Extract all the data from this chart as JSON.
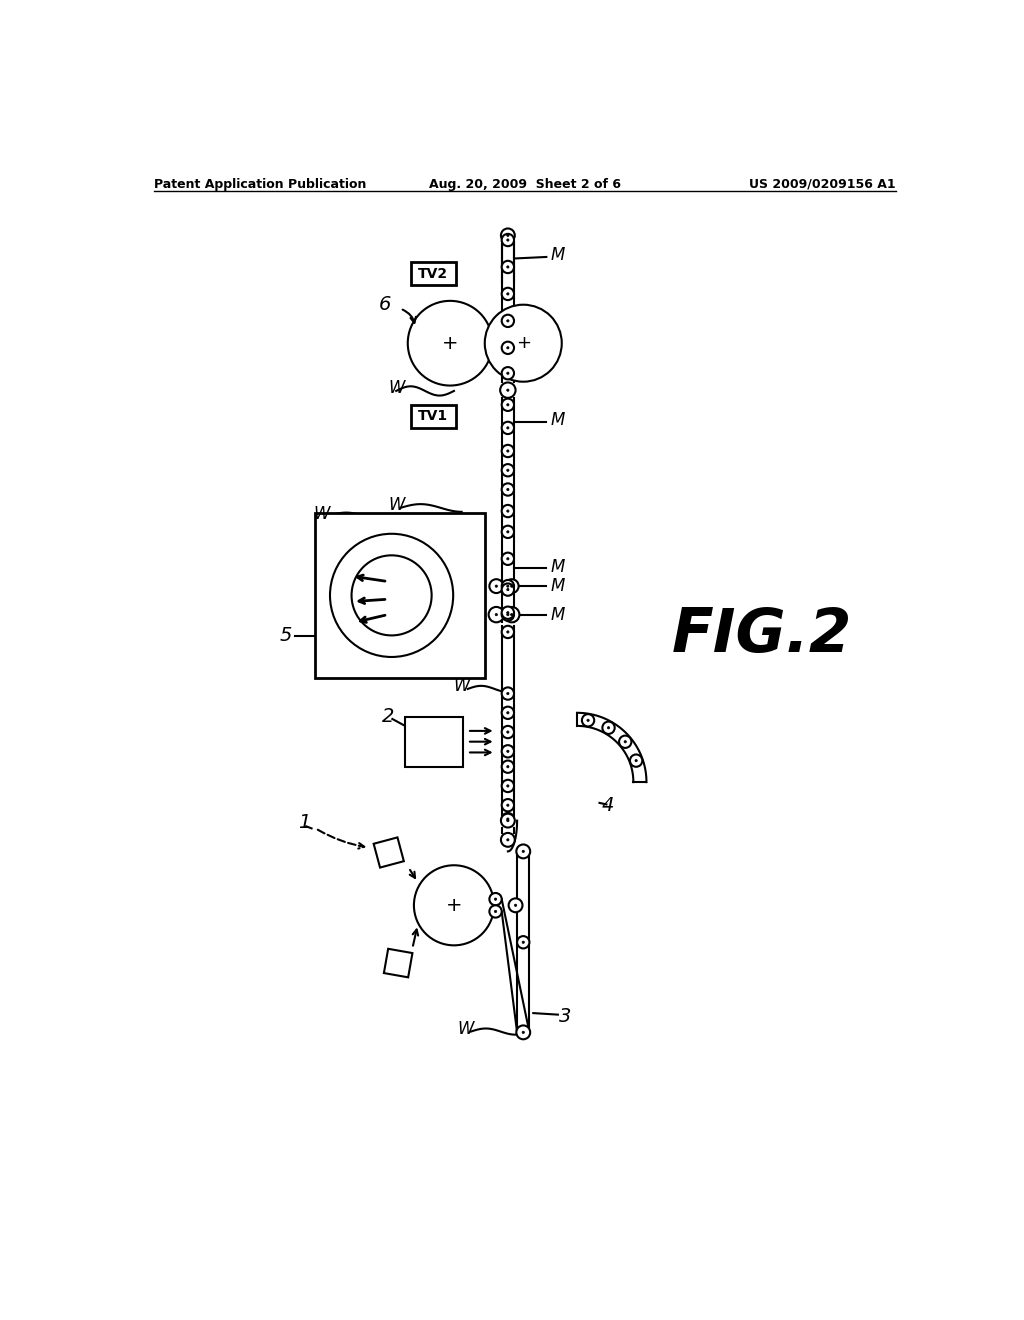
{
  "title_left": "Patent Application Publication",
  "title_mid": "Aug. 20, 2009  Sheet 2 of 6",
  "title_right": "US 2009/0209156 A1",
  "fig_label": "FIG.2",
  "background": "#ffffff"
}
